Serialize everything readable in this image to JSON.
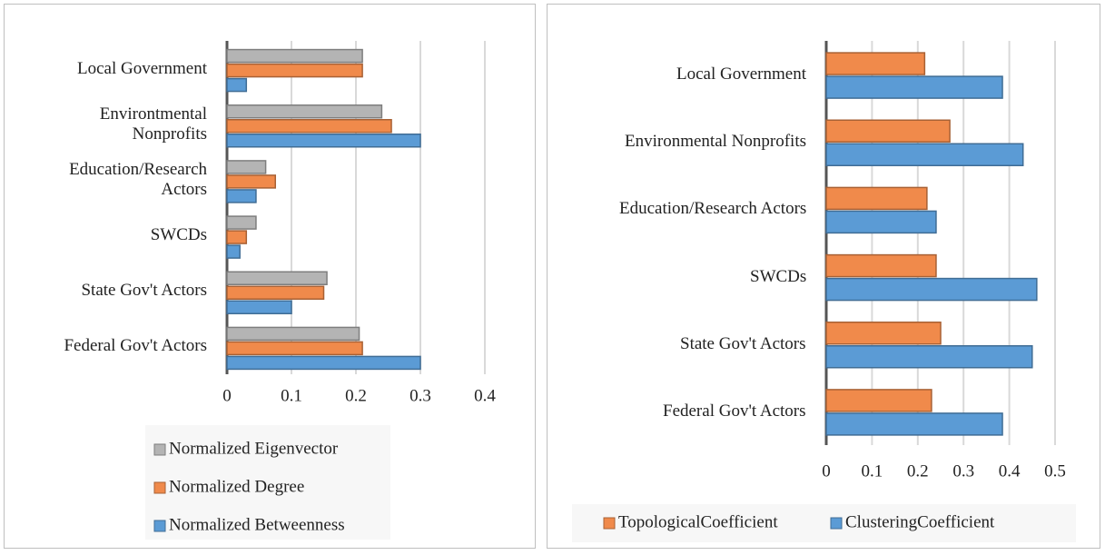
{
  "chart_data": [
    {
      "type": "bar",
      "orientation": "horizontal",
      "categories": [
        "Local Government",
        "Environtmental Nonprofits",
        "Education/Research Actors",
        "SWCDs",
        "State Gov't Actors",
        "Federal Gov't Actors"
      ],
      "series": [
        {
          "name": "Normalized Eigenvector",
          "color": "#b4b4b4",
          "values": [
            0.21,
            0.24,
            0.06,
            0.045,
            0.155,
            0.205
          ]
        },
        {
          "name": "Normalized Degree",
          "color": "#f08a4b",
          "values": [
            0.21,
            0.255,
            0.075,
            0.03,
            0.15,
            0.21
          ]
        },
        {
          "name": "Normalized Betweenness",
          "color": "#5b9bd5",
          "values": [
            0.03,
            0.3,
            0.045,
            0.02,
            0.1,
            0.3
          ]
        }
      ],
      "xlim": [
        0,
        0.4
      ],
      "xticks": [
        0,
        0.1,
        0.2,
        0.3,
        0.4
      ],
      "grid": true,
      "legend": "bottom-vertical"
    },
    {
      "type": "bar",
      "orientation": "horizontal",
      "categories": [
        "Local Government",
        "Environmental Nonprofits",
        "Education/Research Actors",
        "SWCDs",
        "State Gov't Actors",
        "Federal Gov't Actors"
      ],
      "series": [
        {
          "name": "TopologicalCoefficient",
          "color": "#f08a4b",
          "values": [
            0.215,
            0.27,
            0.22,
            0.24,
            0.25,
            0.23
          ]
        },
        {
          "name": "ClusteringCoefficient",
          "color": "#5b9bd5",
          "values": [
            0.385,
            0.43,
            0.24,
            0.46,
            0.45,
            0.385
          ]
        }
      ],
      "xlim": [
        0,
        0.5
      ],
      "xticks": [
        0,
        0.1,
        0.2,
        0.3,
        0.4,
        0.5
      ],
      "grid": true,
      "legend": "bottom-horizontal"
    }
  ]
}
